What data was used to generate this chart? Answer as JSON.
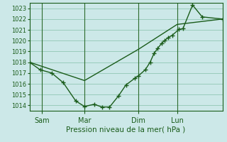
{
  "title": "",
  "xlabel": "Pression niveau de la mer( hPa )",
  "ylim": [
    1013.5,
    1023.5
  ],
  "yticks": [
    1014,
    1015,
    1016,
    1017,
    1018,
    1019,
    1020,
    1021,
    1022,
    1023
  ],
  "bg_color": "#cce8e8",
  "grid_color": "#99ccbb",
  "line_color": "#1a5c1a",
  "xtick_labels": [
    "Sam",
    "Mar",
    "Dim",
    "Lun"
  ],
  "xtick_positions": [
    0.065,
    0.285,
    0.565,
    0.765
  ],
  "series1_x": [
    0.0,
    0.055,
    0.115,
    0.175,
    0.24,
    0.285,
    0.335,
    0.375,
    0.415,
    0.46,
    0.5,
    0.545,
    0.565,
    0.6,
    0.625,
    0.645,
    0.665,
    0.685,
    0.7,
    0.72,
    0.74,
    0.775,
    0.795,
    0.845,
    0.895,
    1.0
  ],
  "series1_y": [
    1018.0,
    1017.3,
    1017.0,
    1016.1,
    1014.4,
    1013.9,
    1014.1,
    1013.85,
    1013.85,
    1014.85,
    1015.9,
    1016.5,
    1016.75,
    1017.3,
    1018.0,
    1018.8,
    1019.3,
    1019.75,
    1020.0,
    1020.3,
    1020.5,
    1021.05,
    1021.1,
    1023.3,
    1022.2,
    1022.0
  ],
  "series2_x": [
    0.0,
    0.285,
    0.565,
    0.765,
    1.0
  ],
  "series2_y": [
    1018.0,
    1016.3,
    1019.2,
    1021.5,
    1022.0
  ],
  "vlines_x": [
    0.065,
    0.285,
    0.565,
    0.765
  ],
  "vline_color": "#2d6b2d"
}
